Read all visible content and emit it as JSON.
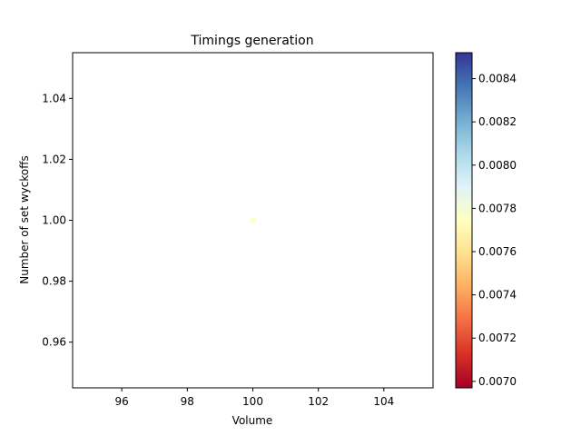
{
  "chart_data": {
    "type": "scatter",
    "title": "Timings generation",
    "xlabel": "Volume",
    "ylabel": "Number of set wyckoffs",
    "xlim": [
      94.5,
      105.5
    ],
    "ylim": [
      0.945,
      1.055
    ],
    "xticks": [
      "96",
      "98",
      "100",
      "102",
      "104"
    ],
    "yticks": [
      "0.96",
      "0.98",
      "1.00",
      "1.02",
      "1.04"
    ],
    "points": [
      {
        "x": 100,
        "y": 1.0,
        "c": 0.00775
      }
    ],
    "colorbar": {
      "colormap": "RdYlBu",
      "range": [
        0.00697,
        0.00852
      ],
      "ticks": [
        "0.0070",
        "0.0072",
        "0.0074",
        "0.0076",
        "0.0078",
        "0.0080",
        "0.0082",
        "0.0084"
      ]
    },
    "grid": false
  }
}
